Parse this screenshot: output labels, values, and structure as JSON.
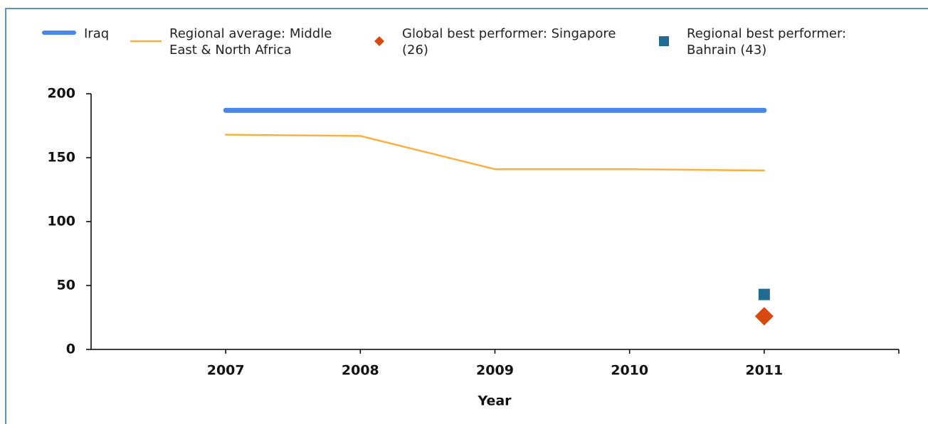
{
  "chart_data": {
    "type": "line",
    "x": [
      2007,
      2008,
      2009,
      2010,
      2011
    ],
    "xlim": [
      2006,
      2012
    ],
    "xticks": [
      2007,
      2008,
      2009,
      2010,
      2011
    ],
    "ylim": [
      0,
      200
    ],
    "yticks": [
      0,
      50,
      100,
      150,
      200
    ],
    "xlabel": "Year",
    "series": [
      {
        "name": "Iraq",
        "color": "#4a86e8",
        "marker": "line",
        "width": 7,
        "values": [
          187,
          187,
          187,
          187,
          187
        ]
      },
      {
        "name": "Regional average: Middle East & North Africa",
        "color": "#f9b040",
        "marker": "line",
        "width": 2.5,
        "values": [
          168,
          167,
          141,
          141,
          140
        ]
      },
      {
        "name": "Global best performer: Singapore (26)",
        "color": "#d9480f",
        "marker": "diamond",
        "values": [
          null,
          null,
          null,
          null,
          26
        ]
      },
      {
        "name": "Regional best performer: Bahrain (43)",
        "color": "#1f6b94",
        "marker": "square",
        "values": [
          null,
          null,
          null,
          null,
          43
        ]
      }
    ]
  }
}
